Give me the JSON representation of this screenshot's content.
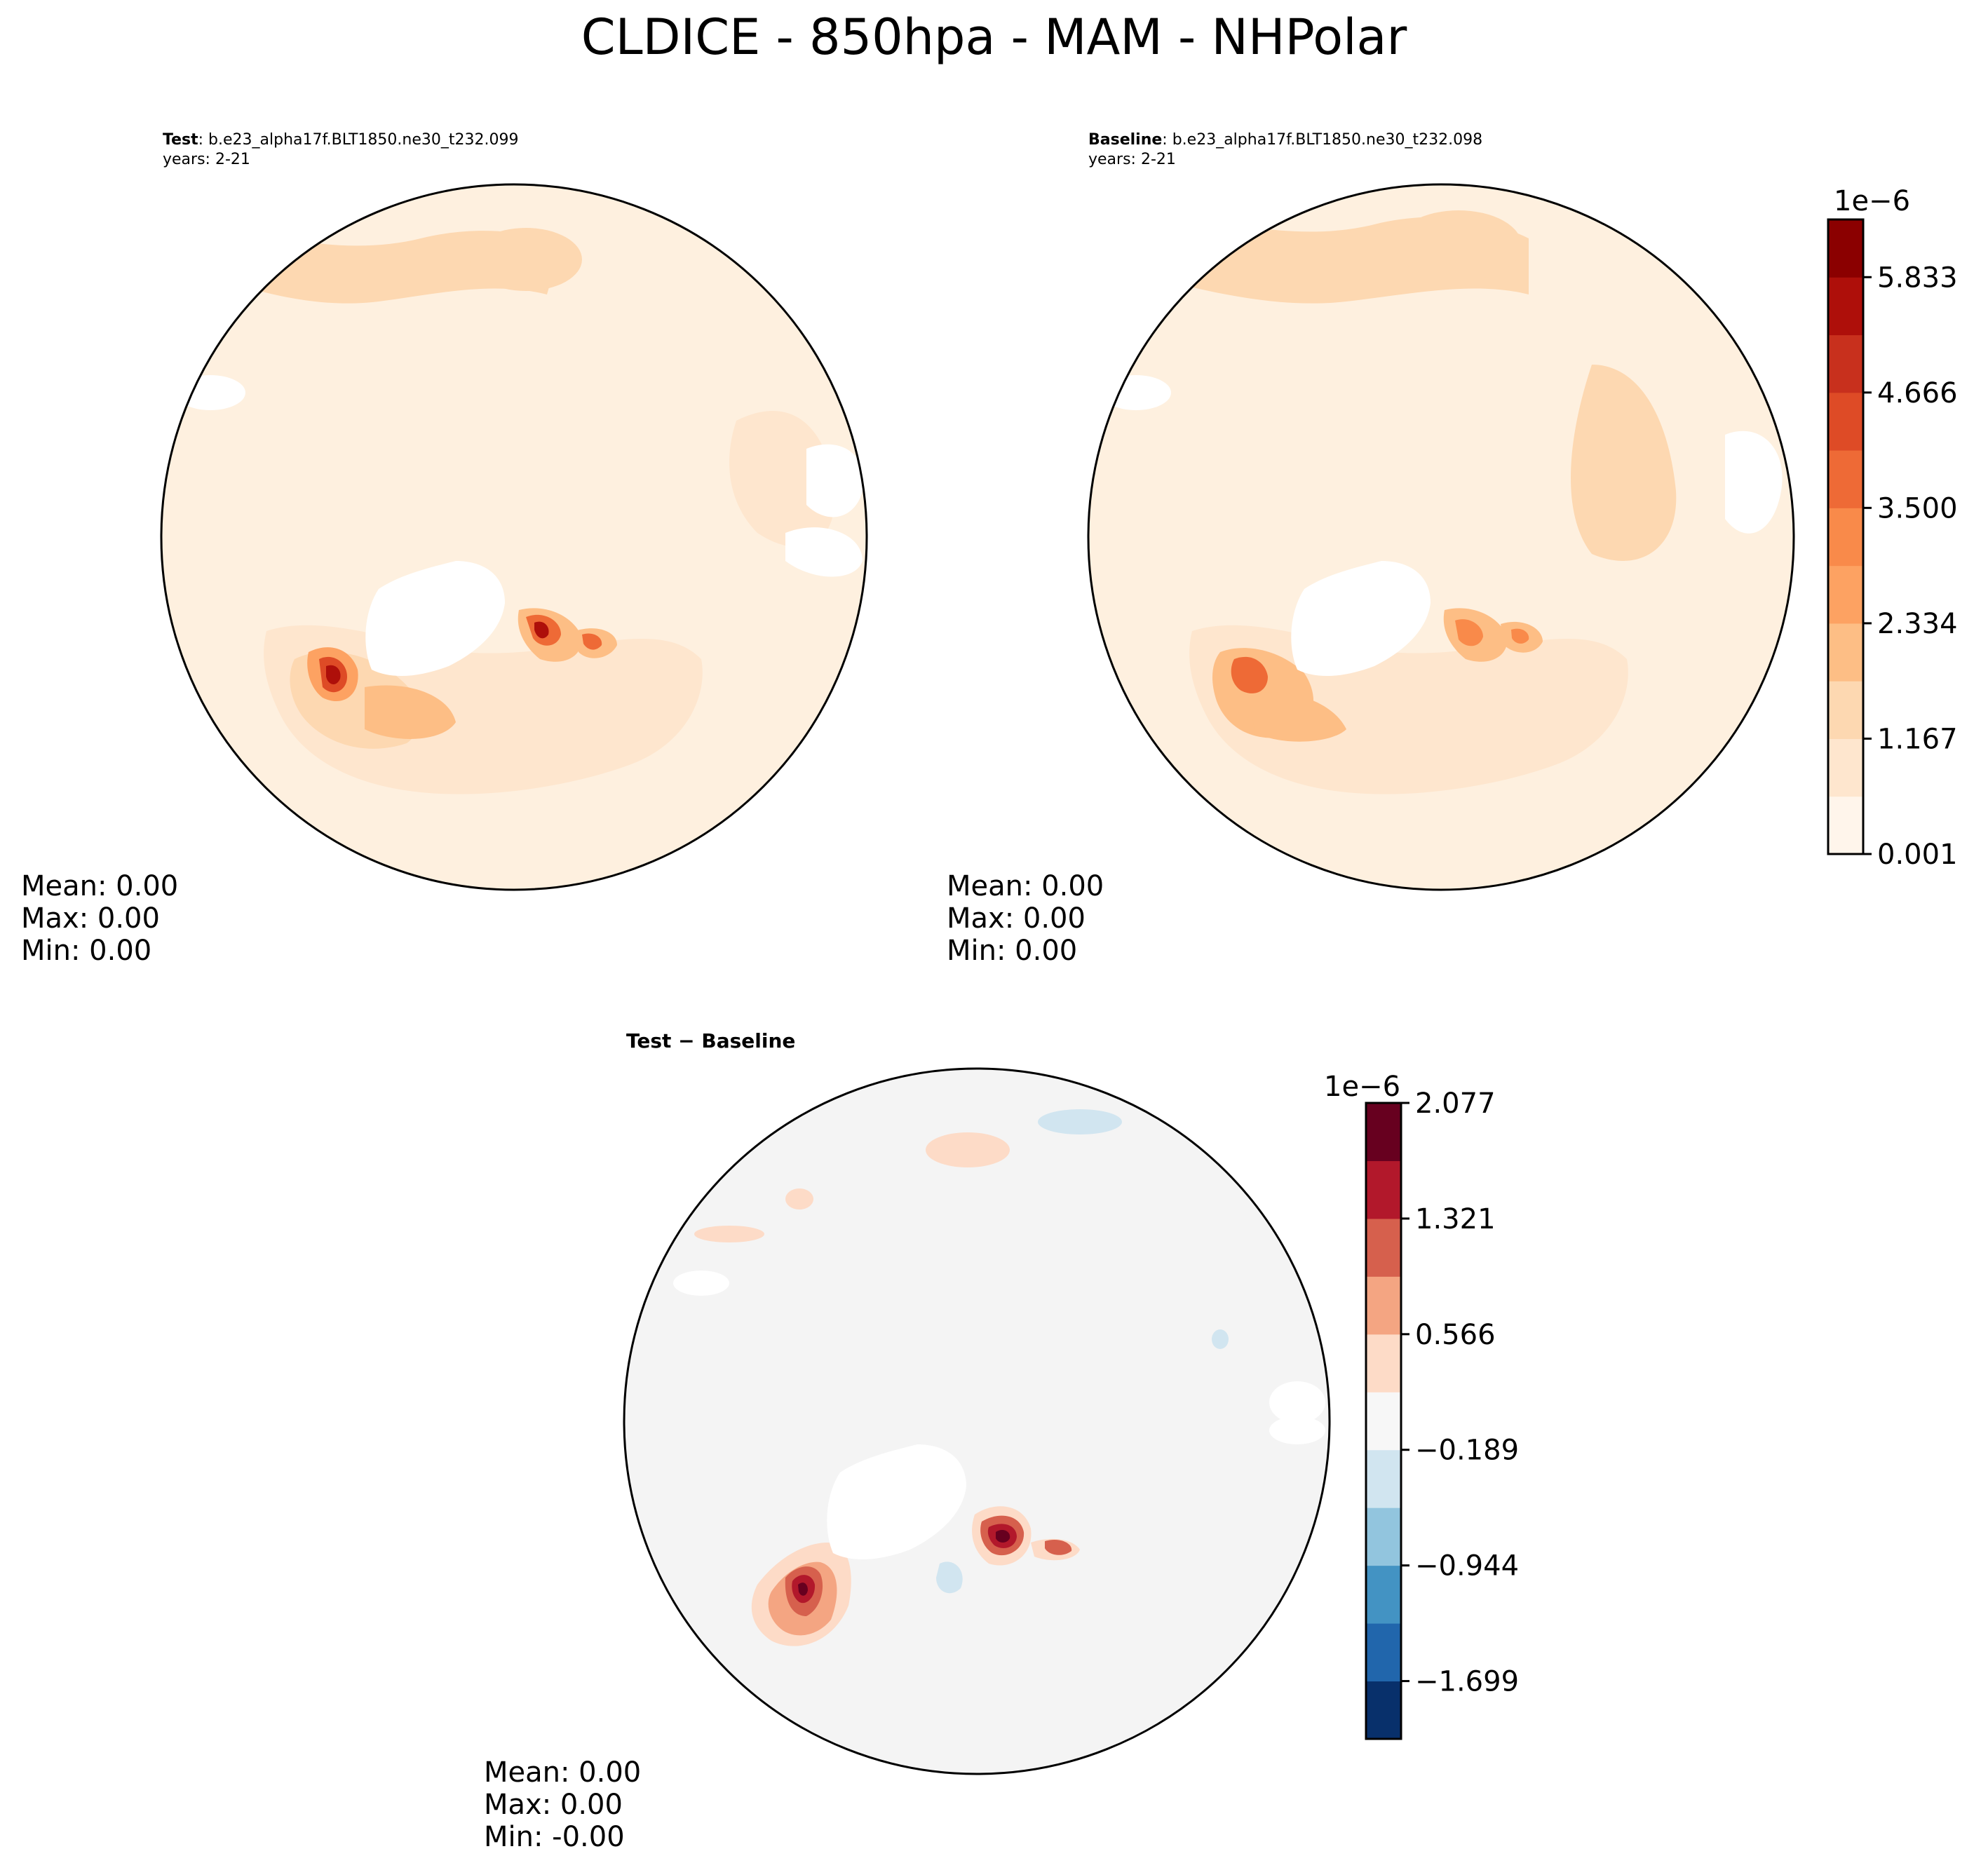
{
  "title": "CLDICE - 850hpa - MAM - NHPolar",
  "panels": {
    "test": {
      "label": "Test",
      "case": ": b.e23_alpha17f.BLT1850.ne30_t232.099",
      "years": "years: 2-21",
      "mean": "Mean:  0.00",
      "max": "Max:  0.00",
      "min": "Min:  0.00"
    },
    "baseline": {
      "label": "Baseline",
      "case": ": b.e23_alpha17f.BLT1850.ne30_t232.098",
      "years": "years: 2-21",
      "mean": "Mean:  0.00",
      "max": "Max:  0.00",
      "min": "Min:  0.00"
    },
    "diff": {
      "label": "Test − Baseline",
      "mean": "Mean:  0.00",
      "max": "Max:  0.00",
      "min": "Min: -0.00"
    }
  },
  "colorbars": {
    "main": {
      "exponent": "1e−6",
      "ticks": [
        "5.833",
        "4.666",
        "3.500",
        "2.334",
        "1.167",
        "0.001"
      ],
      "colors": [
        "#fff5eb",
        "#fee6ce",
        "#fdd8b1",
        "#fdbe85",
        "#fda262",
        "#f98a4a",
        "#ee6a36",
        "#de4b26",
        "#c8301d",
        "#ae0f0a",
        "#8b0000"
      ]
    },
    "diff": {
      "exponent": "1e−6",
      "ticks": [
        "2.077",
        "1.321",
        "0.566",
        "−0.189",
        "−0.944",
        "−1.699"
      ],
      "colors": [
        "#08306b",
        "#2166ac",
        "#4393c3",
        "#92c5de",
        "#d1e5f0",
        "#f7f7f7",
        "#fddbc7",
        "#f4a582",
        "#d6604d",
        "#b2182b",
        "#67001f"
      ]
    }
  }
}
